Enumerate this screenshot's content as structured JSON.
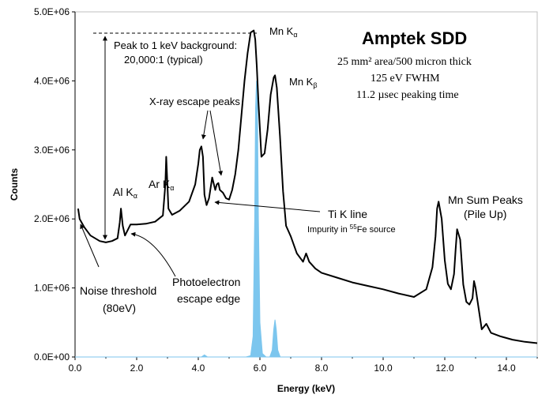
{
  "chart_data": {
    "type": "line",
    "title": "Amptek SDD",
    "specs": [
      "25 mm² area/500 micron thick",
      "125 eV FWHM",
      "11.2 µsec peaking time"
    ],
    "xlabel": "Energy (keV)",
    "ylabel": "Counts",
    "xlim": [
      0,
      15
    ],
    "ylim": [
      0,
      5000000
    ],
    "x_ticks": [
      0,
      2,
      4,
      6,
      8,
      10,
      12,
      14
    ],
    "x_tick_labels": [
      "0.0",
      "2.0",
      "4.0",
      "6.0",
      "8.0",
      "10.0",
      "12.0",
      "14.0"
    ],
    "y_ticks": [
      0,
      1000000,
      2000000,
      3000000,
      4000000,
      5000000
    ],
    "y_tick_labels": [
      "0.0E+00",
      "1.0E+06",
      "2.0E+06",
      "3.0E+06",
      "4.0E+06",
      "5.0E+06"
    ],
    "grid": false,
    "series": [
      {
        "color": "#000000",
        "x": [
          0.1,
          0.15,
          0.3,
          0.5,
          0.8,
          1.0,
          1.2,
          1.38,
          1.45,
          1.49,
          1.55,
          1.62,
          1.7,
          1.8,
          2.0,
          2.3,
          2.6,
          2.85,
          2.93,
          2.96,
          3.03,
          3.15,
          3.4,
          3.7,
          3.9,
          4.0,
          4.05,
          4.1,
          4.15,
          4.2,
          4.27,
          4.35,
          4.45,
          4.55,
          4.6,
          4.65,
          4.7,
          4.8,
          4.9,
          5.0,
          5.1,
          5.2,
          5.3,
          5.4,
          5.5,
          5.6,
          5.7,
          5.8,
          5.85,
          5.9,
          5.95,
          6.05,
          6.15,
          6.25,
          6.35,
          6.45,
          6.49,
          6.55,
          6.65,
          6.75,
          6.85,
          7.0,
          7.2,
          7.4,
          7.5,
          7.6,
          7.8,
          8.0,
          8.5,
          9.0,
          9.5,
          10.0,
          10.5,
          11.0,
          11.4,
          11.6,
          11.7,
          11.75,
          11.8,
          11.9,
          12.0,
          12.1,
          12.2,
          12.3,
          12.35,
          12.4,
          12.5,
          12.6,
          12.7,
          12.8,
          12.9,
          12.95,
          13.0,
          13.1,
          13.2,
          13.35,
          13.5,
          13.8,
          14.2,
          14.6,
          15.0
        ],
        "y": [
          2150000,
          2000000,
          1880000,
          1760000,
          1680000,
          1660000,
          1680000,
          1720000,
          1950000,
          2150000,
          1900000,
          1760000,
          1830000,
          1920000,
          1920000,
          1930000,
          1960000,
          2050000,
          2500000,
          2900000,
          2150000,
          2060000,
          2120000,
          2250000,
          2500000,
          2800000,
          3000000,
          3050000,
          2900000,
          2350000,
          2200000,
          2300000,
          2600000,
          2420000,
          2500000,
          2520000,
          2420000,
          2380000,
          2300000,
          2280000,
          2420000,
          2650000,
          3000000,
          3500000,
          4000000,
          4400000,
          4700000,
          4730000,
          4600000,
          4200000,
          3700000,
          2900000,
          2950000,
          3300000,
          3800000,
          4050000,
          4080000,
          3900000,
          3200000,
          2400000,
          1900000,
          1750000,
          1500000,
          1380000,
          1500000,
          1380000,
          1280000,
          1220000,
          1150000,
          1080000,
          1030000,
          980000,
          920000,
          870000,
          980000,
          1300000,
          1750000,
          2150000,
          2250000,
          2000000,
          1400000,
          1060000,
          980000,
          1200000,
          1550000,
          1850000,
          1700000,
          1050000,
          800000,
          760000,
          850000,
          1100000,
          1000000,
          700000,
          400000,
          480000,
          350000,
          300000,
          250000,
          220000,
          200000
        ]
      },
      {
        "color": "#7cc6ee",
        "x": [
          0.0,
          3.5,
          4.1,
          4.2,
          4.3,
          5.55,
          5.7,
          5.78,
          5.83,
          5.86,
          5.89,
          5.92,
          5.95,
          6.0,
          6.08,
          6.2,
          6.32,
          6.4,
          6.45,
          6.49,
          6.53,
          6.58,
          6.66,
          6.8,
          15.0
        ],
        "y": [
          0,
          0,
          0,
          30000,
          0,
          0,
          20000,
          300000,
          2000000,
          3600000,
          4000000,
          3600000,
          2000000,
          500000,
          50000,
          0,
          0,
          100000,
          400000,
          540000,
          400000,
          100000,
          0,
          0,
          0
        ]
      }
    ],
    "annotations": {
      "peak_to_bg_line1": "Peak to 1 keV background:",
      "peak_to_bg_line2": "20,000:1 (typical)",
      "mn_ka": "Mn K",
      "mn_ka_sub": "α",
      "mn_kb": "Mn K",
      "mn_kb_sub": "β",
      "escape": "X-ray escape peaks",
      "al_ka": "Al K",
      "al_ka_sub": "α",
      "ar_ka": "Ar K",
      "ar_ka_sub": "α",
      "ti_k": "Ti K line",
      "impurity_pre": "Impurity in ",
      "impurity_sup": "55",
      "impurity_post": "Fe source",
      "sum_line1": "Mn Sum Peaks",
      "sum_line2": "(Pile Up)",
      "noise_line1": "Noise threshold",
      "noise_line2": "(80eV)",
      "photo_line1": "Photoelectron",
      "photo_line2": "escape edge"
    }
  }
}
